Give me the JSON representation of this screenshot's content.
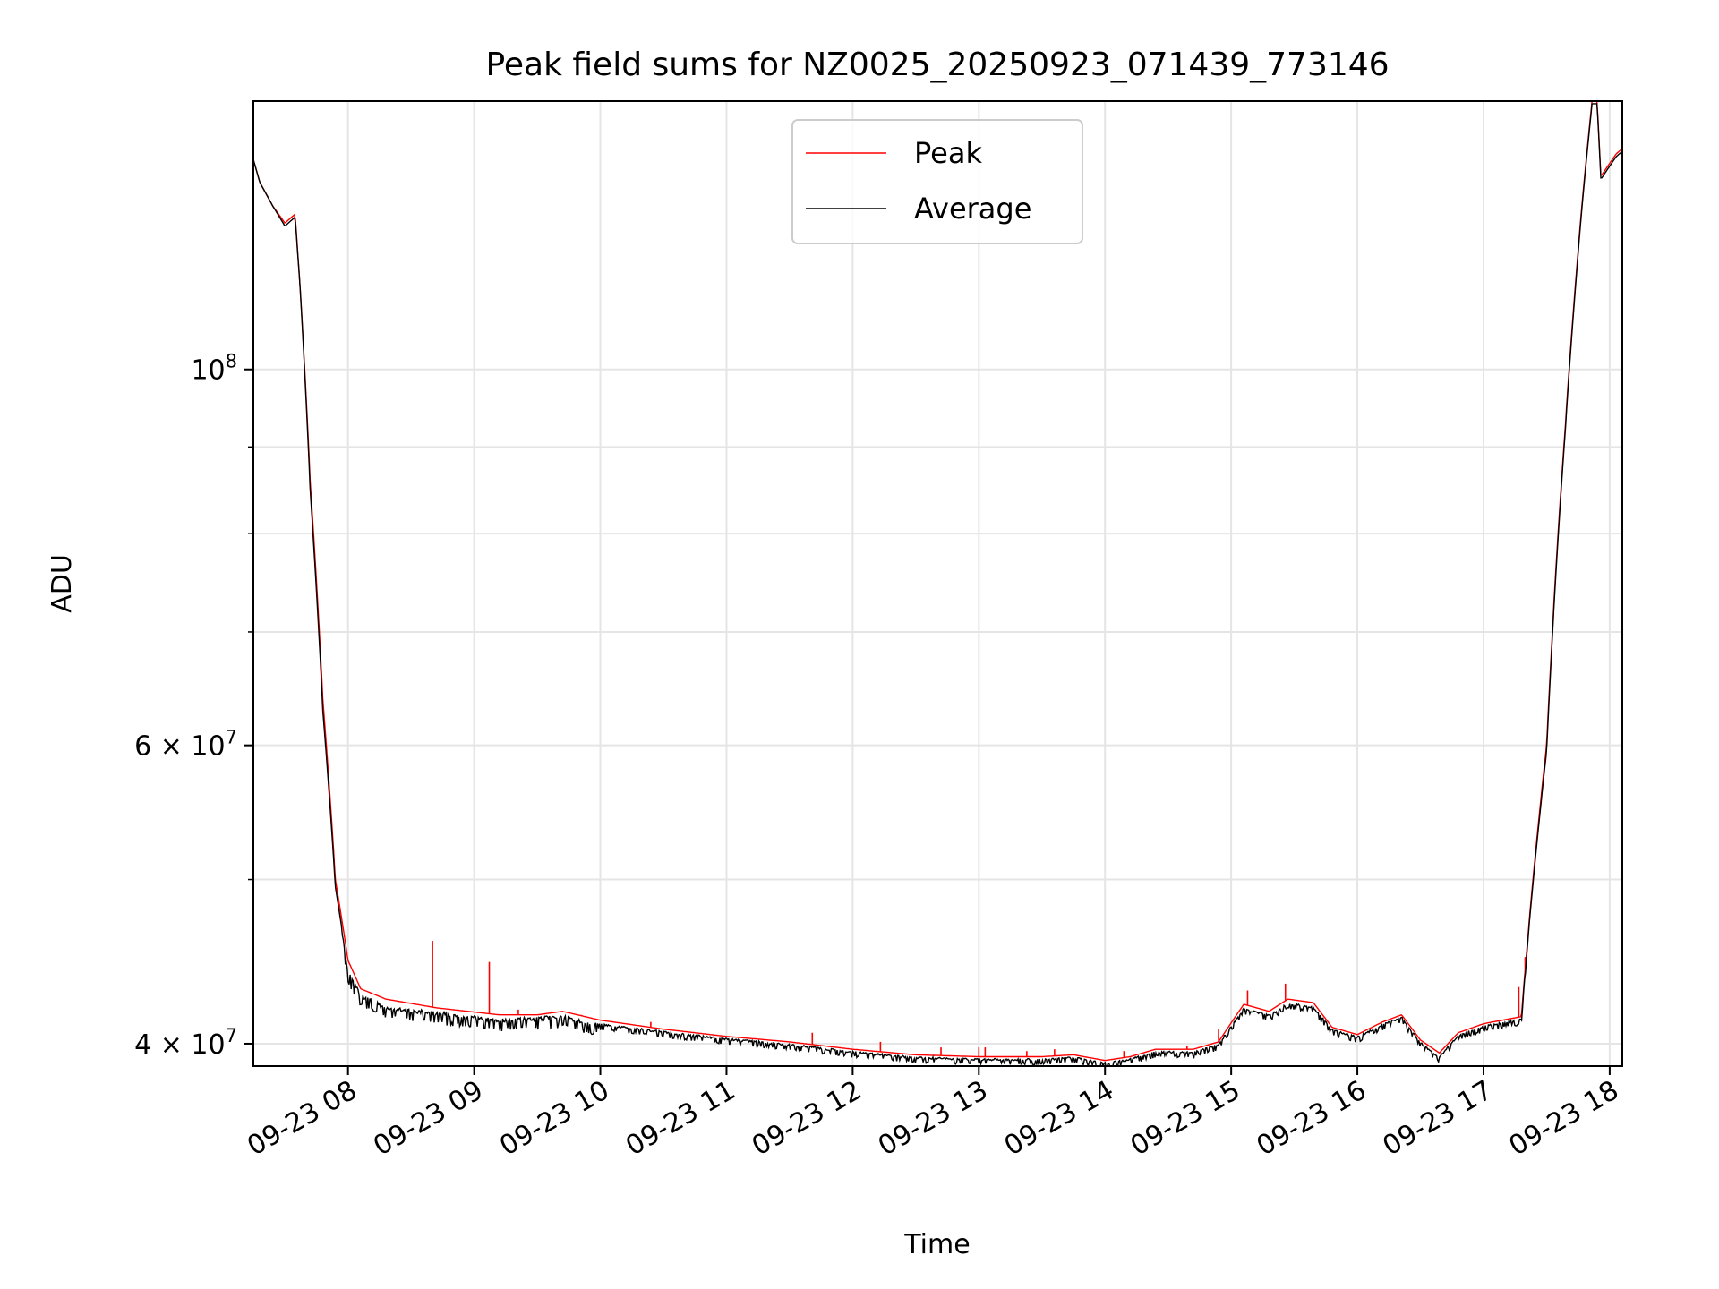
{
  "chart_data": {
    "type": "line",
    "title": "Peak field sums for NZ0025_20250923_071439_773146",
    "xlabel": "Time",
    "ylabel": "ADU",
    "y_scale": "log",
    "xlim_hours": [
      7.25,
      18.1
    ],
    "ylim": [
      38800000,
      144000000
    ],
    "grid": true,
    "legend_position": "upper center",
    "x_ticks": [
      {
        "hour": 8,
        "label": "09-23 08"
      },
      {
        "hour": 9,
        "label": "09-23 09"
      },
      {
        "hour": 10,
        "label": "09-23 10"
      },
      {
        "hour": 11,
        "label": "09-23 11"
      },
      {
        "hour": 12,
        "label": "09-23 12"
      },
      {
        "hour": 13,
        "label": "09-23 13"
      },
      {
        "hour": 14,
        "label": "09-23 14"
      },
      {
        "hour": 15,
        "label": "09-23 15"
      },
      {
        "hour": 16,
        "label": "09-23 16"
      },
      {
        "hour": 17,
        "label": "09-23 17"
      },
      {
        "hour": 18,
        "label": "09-23 18"
      }
    ],
    "y_major_ticks": [
      {
        "value": 40000000,
        "base": "4 × 10",
        "exp": "7"
      },
      {
        "value": 60000000,
        "base": "6 × 10",
        "exp": "7"
      },
      {
        "value": 100000000,
        "base": "10",
        "exp": "8"
      }
    ],
    "y_minor_gridlines": [
      50000000,
      70000000,
      80000000,
      90000000
    ],
    "series": [
      {
        "name": "Peak",
        "color": "#ff0000",
        "points": [
          [
            7.25,
            133000000
          ],
          [
            7.3,
            129000000
          ],
          [
            7.4,
            125000000
          ],
          [
            7.5,
            122000000
          ],
          [
            7.58,
            123500000
          ],
          [
            7.62,
            112000000
          ],
          [
            7.7,
            86000000
          ],
          [
            7.8,
            64000000
          ],
          [
            7.9,
            50000000
          ],
          [
            8.0,
            44800000
          ],
          [
            8.1,
            43100000
          ],
          [
            8.3,
            42500000
          ],
          [
            8.7,
            42000000
          ],
          [
            9.2,
            41600000
          ],
          [
            9.5,
            41600000
          ],
          [
            9.7,
            41800000
          ],
          [
            10.0,
            41300000
          ],
          [
            10.5,
            40800000
          ],
          [
            11.0,
            40400000
          ],
          [
            11.5,
            40100000
          ],
          [
            12.0,
            39700000
          ],
          [
            12.5,
            39400000
          ],
          [
            13.0,
            39300000
          ],
          [
            13.5,
            39300000
          ],
          [
            13.75,
            39400000
          ],
          [
            14.0,
            39100000
          ],
          [
            14.2,
            39300000
          ],
          [
            14.4,
            39700000
          ],
          [
            14.7,
            39700000
          ],
          [
            14.9,
            40100000
          ],
          [
            15.1,
            42200000
          ],
          [
            15.3,
            41800000
          ],
          [
            15.45,
            42500000
          ],
          [
            15.65,
            42300000
          ],
          [
            15.8,
            40900000
          ],
          [
            16.0,
            40500000
          ],
          [
            16.2,
            41200000
          ],
          [
            16.35,
            41600000
          ],
          [
            16.5,
            40200000
          ],
          [
            16.65,
            39500000
          ],
          [
            16.8,
            40600000
          ],
          [
            17.0,
            41100000
          ],
          [
            17.15,
            41300000
          ],
          [
            17.3,
            41500000
          ],
          [
            17.5,
            60000000
          ],
          [
            17.65,
            93000000
          ],
          [
            17.78,
            125000000
          ],
          [
            17.86,
            144000000
          ],
          [
            17.9,
            144000000
          ],
          [
            17.93,
            130000000
          ],
          [
            18.05,
            134000000
          ],
          [
            18.1,
            135000000
          ]
        ],
        "spikes": [
          [
            8.67,
            46000000
          ],
          [
            9.12,
            44700000
          ],
          [
            9.35,
            41900000
          ],
          [
            9.85,
            41600000
          ],
          [
            10.4,
            41200000
          ],
          [
            11.68,
            40600000
          ],
          [
            12.22,
            40100000
          ],
          [
            12.7,
            39800000
          ],
          [
            13.0,
            39800000
          ],
          [
            13.05,
            39800000
          ],
          [
            13.38,
            39600000
          ],
          [
            13.6,
            39700000
          ],
          [
            14.15,
            39600000
          ],
          [
            14.65,
            39900000
          ],
          [
            14.9,
            40800000
          ],
          [
            15.13,
            43000000
          ],
          [
            15.43,
            43400000
          ],
          [
            17.28,
            43200000
          ],
          [
            17.33,
            45000000
          ]
        ]
      },
      {
        "name": "Average",
        "color": "#000000",
        "points": [
          [
            7.25,
            133000000
          ],
          [
            7.3,
            129000000
          ],
          [
            7.4,
            125000000
          ],
          [
            7.5,
            121500000
          ],
          [
            7.58,
            123000000
          ],
          [
            7.62,
            112000000
          ],
          [
            7.7,
            85000000
          ],
          [
            7.8,
            63000000
          ],
          [
            7.9,
            49500000
          ],
          [
            8.0,
            44200000
          ],
          [
            8.1,
            42800000
          ],
          [
            8.3,
            42100000
          ],
          [
            8.7,
            41800000
          ],
          [
            9.2,
            41400000
          ],
          [
            9.5,
            41500000
          ],
          [
            9.7,
            41600000
          ],
          [
            10.0,
            41100000
          ],
          [
            10.5,
            40700000
          ],
          [
            11.0,
            40300000
          ],
          [
            11.5,
            40000000
          ],
          [
            12.0,
            39600000
          ],
          [
            12.5,
            39300000
          ],
          [
            13.0,
            39200000
          ],
          [
            13.5,
            39200000
          ],
          [
            13.75,
            39300000
          ],
          [
            14.0,
            39000000
          ],
          [
            14.2,
            39200000
          ],
          [
            14.4,
            39600000
          ],
          [
            14.7,
            39600000
          ],
          [
            14.9,
            40000000
          ],
          [
            15.1,
            42000000
          ],
          [
            15.3,
            41600000
          ],
          [
            15.45,
            42300000
          ],
          [
            15.65,
            42100000
          ],
          [
            15.8,
            40800000
          ],
          [
            16.0,
            40400000
          ],
          [
            16.2,
            41100000
          ],
          [
            16.35,
            41500000
          ],
          [
            16.5,
            40100000
          ],
          [
            16.65,
            39300000
          ],
          [
            16.8,
            40500000
          ],
          [
            17.0,
            41000000
          ],
          [
            17.15,
            41200000
          ],
          [
            17.3,
            41400000
          ],
          [
            17.5,
            59500000
          ],
          [
            17.65,
            92500000
          ],
          [
            17.78,
            124500000
          ],
          [
            17.86,
            143500000
          ],
          [
            17.9,
            143500000
          ],
          [
            17.93,
            129500000
          ],
          [
            18.05,
            133500000
          ],
          [
            18.1,
            134500000
          ]
        ]
      }
    ]
  }
}
